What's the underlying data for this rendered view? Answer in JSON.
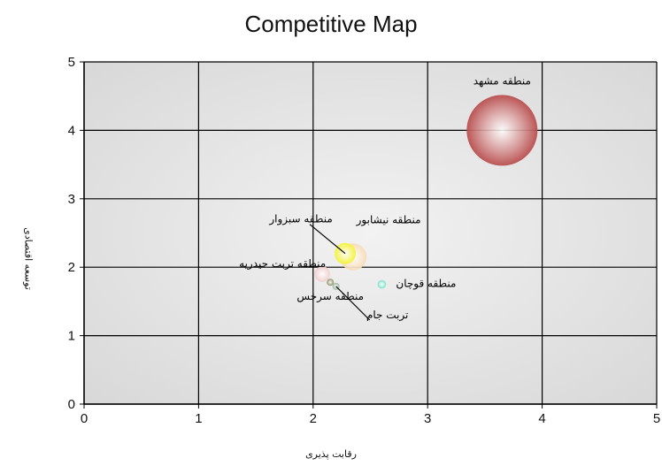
{
  "chart_data": {
    "type": "scatter",
    "title": "Competitive Map",
    "xlabel": "رقابت پذیری",
    "ylabel": "توسعه اقتصادی",
    "xlim": [
      0,
      5
    ],
    "ylim": [
      0,
      5
    ],
    "x_ticks": [
      "0",
      "1",
      "2",
      "3",
      "4",
      "5"
    ],
    "y_ticks": [
      "0",
      "1",
      "2",
      "3",
      "4",
      "5"
    ],
    "grid": true,
    "points": [
      {
        "label": "منطقه مشهد",
        "x": 3.65,
        "y": 4.0,
        "size": 1.0,
        "color": "#b23a3a"
      },
      {
        "label": "منطقه نیشابور",
        "x": 2.35,
        "y": 2.15,
        "size": 0.38,
        "color": "#f5d7b0"
      },
      {
        "label": "منطقه سبزوار",
        "x": 2.28,
        "y": 2.2,
        "size": 0.3,
        "color": "#f2f21a"
      },
      {
        "label": "منطقه تربت حیدریه",
        "x": 2.08,
        "y": 1.9,
        "size": 0.22,
        "color": "#f0c8c8"
      },
      {
        "label": "منطقه سرخس",
        "x": 2.15,
        "y": 1.78,
        "size": 0.1,
        "color": "#7a7a4a"
      },
      {
        "label": "تربت جام",
        "x": 2.2,
        "y": 1.72,
        "size": 0.08,
        "color": "#88aa88"
      },
      {
        "label": "منطقه قوچان",
        "x": 2.6,
        "y": 1.75,
        "size": 0.12,
        "color": "#66e0c0"
      }
    ]
  }
}
